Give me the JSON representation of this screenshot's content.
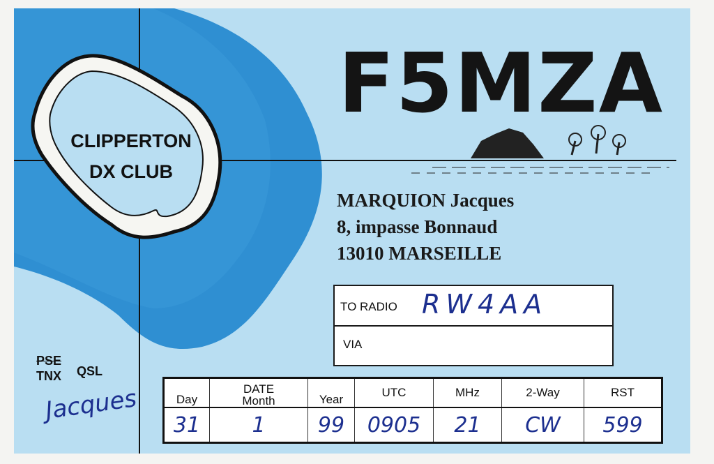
{
  "card": {
    "callsign": "F5MZA",
    "club_logo": {
      "line1": "CLIPPERTON",
      "line2": "DX CLUB"
    },
    "address": [
      "MARQUION Jacques",
      "8, impasse Bonnaud",
      "13010 MARSEILLE"
    ],
    "to_radio_label": "TO RADIO",
    "to_radio_value": "RW4AA",
    "via_label": "VIA",
    "via_value": "",
    "qsl": {
      "pse": "PSE",
      "tnx": "TNX",
      "qsl": "QSL",
      "signature": "Jacques"
    },
    "colors": {
      "card": "#b9def2",
      "sea": "#2f8fd2",
      "ink": "#1c2f8f"
    }
  },
  "log_table": {
    "date_label": "DATE",
    "headers": [
      "Day",
      "Month",
      "Year",
      "UTC",
      "MHz",
      "2-Way",
      "RST"
    ],
    "values": [
      "31",
      "1",
      "99",
      "0905",
      "21",
      "CW",
      "599"
    ]
  }
}
